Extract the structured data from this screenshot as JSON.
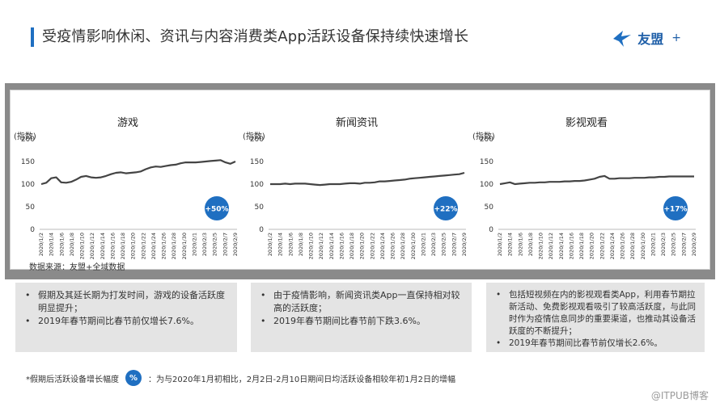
{
  "header": {
    "title": "受疫情影响休闲、资讯与内容消费类App活跃设备保持续快速增长",
    "logo_text": "友盟",
    "logo_plus": "+",
    "logo_icon": "bird-icon",
    "accent_color": "#1f6fc1"
  },
  "source_label": "数据来源：友盟+全域数据",
  "chart_data": [
    {
      "type": "line",
      "title": "游戏",
      "ylabel": "(指数)",
      "ylim": [
        0,
        200
      ],
      "yticks": [
        "0",
        "50",
        "100",
        "150",
        "200"
      ],
      "xticks": [
        "2020/1/2",
        "2020/1/4",
        "2020/1/6",
        "2020/1/8",
        "2020/1/10",
        "2020/1/12",
        "2020/1/14",
        "2020/1/16",
        "2020/1/18",
        "2020/1/20",
        "2020/1/22",
        "2020/1/24",
        "2020/1/26",
        "2020/1/28",
        "2020/1/30",
        "2020/2/1",
        "2020/2/3",
        "2020/2/5",
        "2020/2/7",
        "2020/2/9"
      ],
      "series": [
        {
          "values": [
            100,
            103,
            113,
            115,
            104,
            103,
            105,
            110,
            116,
            118,
            115,
            114,
            115,
            118,
            122,
            125,
            126,
            124,
            125,
            126,
            128,
            133,
            137,
            139,
            138,
            140,
            142,
            143,
            146,
            148,
            148,
            148,
            149,
            150,
            151,
            152,
            153,
            148,
            145,
            150
          ]
        }
      ],
      "badge": "+50%",
      "grid": false
    },
    {
      "type": "line",
      "title": "新闻资讯",
      "ylabel": "(指数)",
      "ylim": [
        0,
        200
      ],
      "yticks": [
        "0",
        "50",
        "100",
        "150",
        "200"
      ],
      "xticks": [
        "2020/1/2",
        "2020/1/4",
        "2020/1/6",
        "2020/1/8",
        "2020/1/10",
        "2020/1/12",
        "2020/1/14",
        "2020/1/16",
        "2020/1/18",
        "2020/1/20",
        "2020/1/22",
        "2020/1/24",
        "2020/1/26",
        "2020/1/28",
        "2020/1/30",
        "2020/2/1",
        "2020/2/3",
        "2020/2/5",
        "2020/2/7",
        "2020/2/9"
      ],
      "series": [
        {
          "values": [
            100,
            100,
            100,
            101,
            100,
            101,
            101,
            101,
            100,
            99,
            98,
            99,
            100,
            100,
            100,
            101,
            102,
            102,
            101,
            103,
            103,
            104,
            106,
            106,
            107,
            108,
            109,
            110,
            112,
            113,
            114,
            115,
            116,
            117,
            118,
            119,
            120,
            121,
            122,
            125
          ]
        }
      ],
      "badge": "+22%",
      "grid": false
    },
    {
      "type": "line",
      "title": "影视观看",
      "ylabel": "(指数)",
      "ylim": [
        0,
        200
      ],
      "yticks": [
        "0",
        "50",
        "100",
        "150",
        "200"
      ],
      "xticks": [
        "2020/1/2",
        "2020/1/4",
        "2020/1/6",
        "2020/1/8",
        "2020/1/10",
        "2020/1/12",
        "2020/1/14",
        "2020/1/16",
        "2020/1/18",
        "2020/1/20",
        "2020/1/22",
        "2020/1/24",
        "2020/1/26",
        "2020/1/28",
        "2020/1/30",
        "2020/2/1",
        "2020/2/3",
        "2020/2/5",
        "2020/2/7",
        "2020/2/9"
      ],
      "series": [
        {
          "values": [
            100,
            102,
            104,
            100,
            101,
            102,
            103,
            103,
            104,
            104,
            105,
            105,
            105,
            106,
            106,
            107,
            107,
            108,
            110,
            112,
            116,
            118,
            112,
            112,
            113,
            113,
            113,
            114,
            114,
            114,
            115,
            115,
            116,
            116,
            117,
            117,
            117,
            117,
            117,
            117
          ]
        }
      ],
      "badge": "+17%",
      "grid": false
    }
  ],
  "notes": [
    {
      "items": [
        "假期及其延长期为打发时间，游戏的设备活跃度明显提升；",
        "2019年春节期间比春节前仅增长7.6%。"
      ]
    },
    {
      "items": [
        "由于疫情影响，新闻资讯类App一直保持相对较高的活跃度；",
        "2019年春节期间比春节前下跌3.6%。"
      ]
    },
    {
      "items": [
        "包括短视频在内的影视观看类App，利用春节期拉新活动、免费影视观看吸引了较高活跃度，与此同时作为疫情信息同步的重要渠道，也推动其设备活跃度的不断提升；",
        "2019年春节期间比春节前仅增长2.6%。"
      ]
    }
  ],
  "footer": {
    "prefix": "*假期后活跃设备增长幅度",
    "badge": "%",
    "text": "：为与2020年1月初相比，2月2日-2月10日期间日均活跃设备相较年初1月2日的增幅"
  },
  "watermark": "@ITPUB博客"
}
